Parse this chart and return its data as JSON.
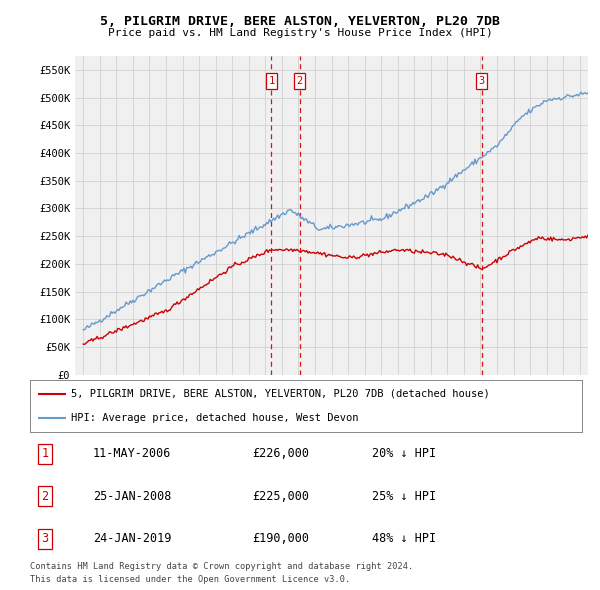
{
  "title": "5, PILGRIM DRIVE, BERE ALSTON, YELVERTON, PL20 7DB",
  "subtitle": "Price paid vs. HM Land Registry's House Price Index (HPI)",
  "legend_property": "5, PILGRIM DRIVE, BERE ALSTON, YELVERTON, PL20 7DB (detached house)",
  "legend_hpi": "HPI: Average price, detached house, West Devon",
  "footer1": "Contains HM Land Registry data © Crown copyright and database right 2024.",
  "footer2": "This data is licensed under the Open Government Licence v3.0.",
  "transactions": [
    {
      "num": 1,
      "date": "11-MAY-2006",
      "price": "£226,000",
      "pct": "20% ↓ HPI",
      "year": 2006.37
    },
    {
      "num": 2,
      "date": "25-JAN-2008",
      "price": "£225,000",
      "pct": "25% ↓ HPI",
      "year": 2008.07
    },
    {
      "num": 3,
      "date": "24-JAN-2019",
      "price": "£190,000",
      "pct": "48% ↓ HPI",
      "year": 2019.07
    }
  ],
  "ylim": [
    0,
    575000
  ],
  "yticks": [
    0,
    50000,
    100000,
    150000,
    200000,
    250000,
    300000,
    350000,
    400000,
    450000,
    500000,
    550000
  ],
  "ytick_labels": [
    "£0",
    "£50K",
    "£100K",
    "£150K",
    "£200K",
    "£250K",
    "£300K",
    "£350K",
    "£400K",
    "£450K",
    "£500K",
    "£550K"
  ],
  "xlim_start": 1994.5,
  "xlim_end": 2025.5,
  "property_color": "#cc0000",
  "hpi_color": "#6699cc",
  "vline_color": "#cc0000",
  "grid_color": "#cccccc",
  "bg_color": "#ffffff",
  "plot_bg_color": "#f0f0f0"
}
